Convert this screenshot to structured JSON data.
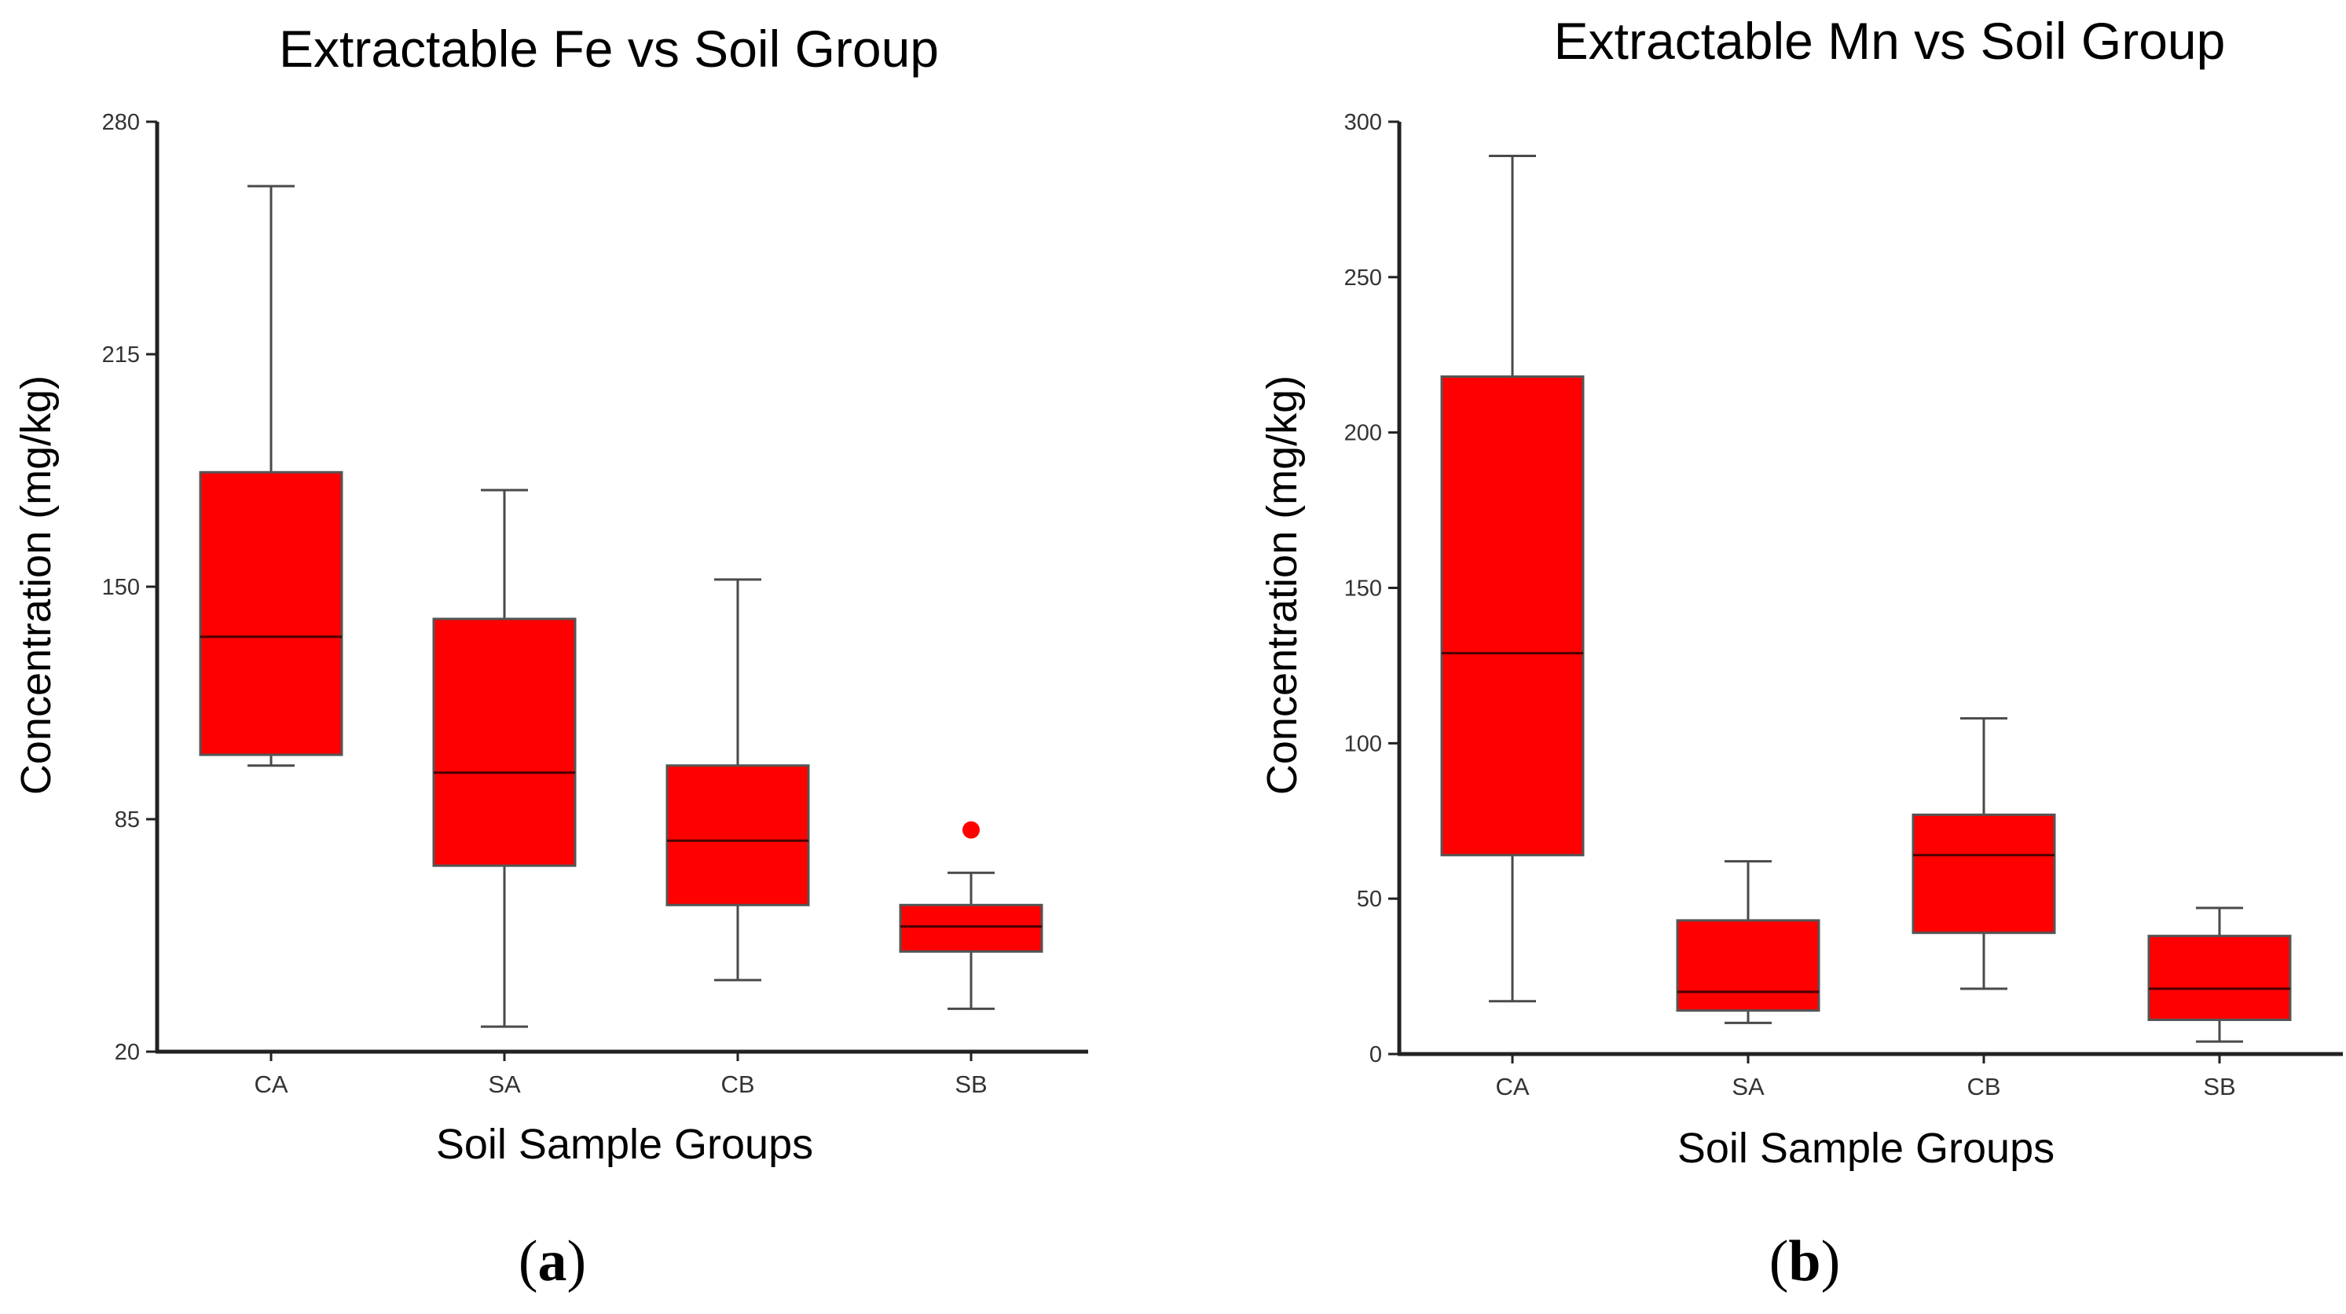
{
  "chart_data": [
    {
      "type": "boxplot",
      "panel_label": "a",
      "title": "Extractable Fe vs Soil Group",
      "xlabel": "Soil Sample Groups",
      "ylabel": "Concentration (mg/kg)",
      "ylim": [
        20,
        280
      ],
      "yticks": [
        "20",
        "85",
        "150",
        "215",
        "280"
      ],
      "categories": [
        "CA",
        "SA",
        "CB",
        "SB"
      ],
      "series": [
        {
          "name": "CA",
          "whisker_low": 100,
          "q1": 103,
          "median": 136,
          "q3": 182,
          "whisker_high": 262,
          "outliers": []
        },
        {
          "name": "SA",
          "whisker_low": 27,
          "q1": 72,
          "median": 98,
          "q3": 141,
          "whisker_high": 177,
          "outliers": []
        },
        {
          "name": "CB",
          "whisker_low": 40,
          "q1": 61,
          "median": 79,
          "q3": 100,
          "whisker_high": 152,
          "outliers": []
        },
        {
          "name": "SB",
          "whisker_low": 32,
          "q1": 48,
          "median": 55,
          "q3": 61,
          "whisker_high": 70,
          "outliers": [
            82
          ]
        }
      ],
      "box_color": "#ff0000",
      "line_color": "#4a4a4a"
    },
    {
      "type": "boxplot",
      "panel_label": "b",
      "title": "Extractable Mn vs Soil Group",
      "xlabel": "Soil Sample Groups",
      "ylabel": "Concentration (mg/kg)",
      "ylim": [
        0,
        300
      ],
      "yticks": [
        "0",
        "50",
        "100",
        "150",
        "200",
        "250",
        "300"
      ],
      "categories": [
        "CA",
        "SA",
        "CB",
        "SB"
      ],
      "series": [
        {
          "name": "CA",
          "whisker_low": 17,
          "q1": 64,
          "median": 129,
          "q3": 218,
          "whisker_high": 289,
          "outliers": []
        },
        {
          "name": "SA",
          "whisker_low": 10,
          "q1": 14,
          "median": 20,
          "q3": 43,
          "whisker_high": 62,
          "outliers": []
        },
        {
          "name": "CB",
          "whisker_low": 21,
          "q1": 39,
          "median": 64,
          "q3": 77,
          "whisker_high": 108,
          "outliers": []
        },
        {
          "name": "SB",
          "whisker_low": 4,
          "q1": 11,
          "median": 21,
          "q3": 38,
          "whisker_high": 47,
          "outliers": []
        }
      ],
      "box_color": "#ff0000",
      "line_color": "#4a4a4a"
    }
  ]
}
